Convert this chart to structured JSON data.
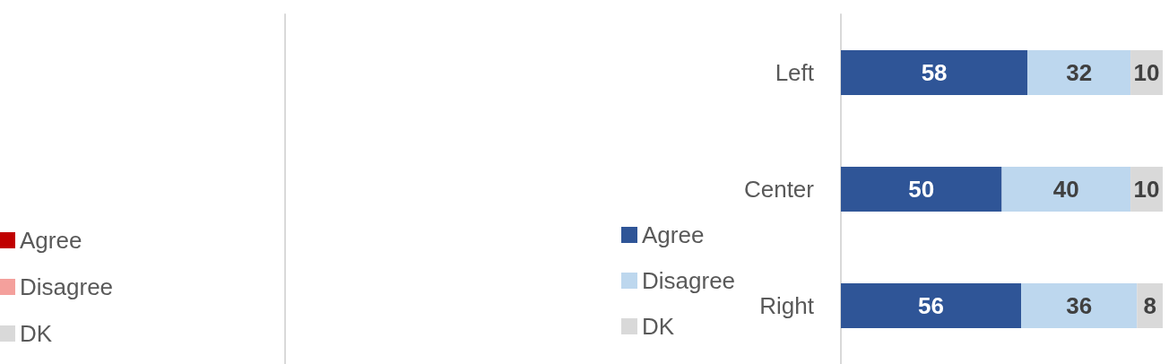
{
  "chart_data": [
    {
      "type": "other",
      "legend": "left",
      "series": [
        {
          "name": "Agree",
          "color": "#c00000"
        },
        {
          "name": "Disagree",
          "color": "#f4a09c"
        },
        {
          "name": "DK",
          "color": "#d9d9d9"
        }
      ]
    },
    {
      "type": "bar",
      "orientation": "horizontal",
      "stacked": true,
      "categories": [
        "Left",
        "Center",
        "Right"
      ],
      "xlim": [
        0,
        100
      ],
      "legend": "left",
      "tick_labels": "y",
      "data_labels": true,
      "series": [
        {
          "name": "Agree",
          "color": "#2f5597",
          "values": [
            58,
            50,
            56
          ]
        },
        {
          "name": "Disagree",
          "color": "#bdd7ee",
          "values": [
            32,
            40,
            36
          ]
        },
        {
          "name": "DK",
          "color": "#d9d9d9",
          "values": [
            10,
            10,
            8
          ]
        }
      ]
    }
  ]
}
